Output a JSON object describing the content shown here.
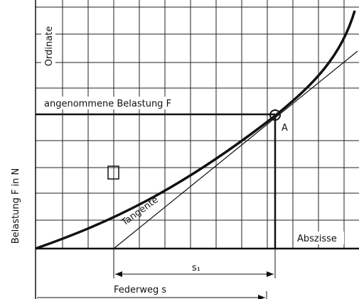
{
  "labels": {
    "ordinate": "Ordinate",
    "load": "angenommene Belastung F",
    "point": "A",
    "tangent": "Tangente",
    "abscissa": "Abszisse",
    "y_axis": "Belastung F in N",
    "s1": "s₁",
    "x_axis": "Federweg s"
  }
}
